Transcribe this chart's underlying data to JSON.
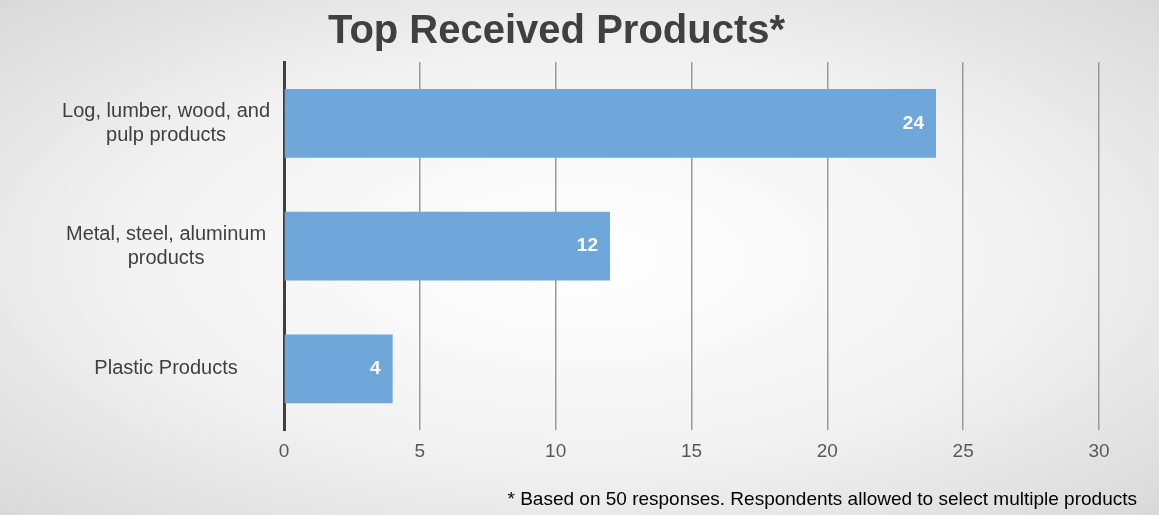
{
  "chart_data": {
    "type": "bar",
    "orientation": "horizontal",
    "title": "Top Received Products*",
    "categories": [
      "Log, lumber, wood, and pulp products",
      "Metal, steel, aluminum products",
      "Plastic Products"
    ],
    "values": [
      24,
      12,
      4
    ],
    "color": "#70a7da",
    "xlim": [
      0,
      30
    ],
    "xticks": [
      0,
      5,
      10,
      15,
      20,
      25,
      30
    ],
    "grid": "x",
    "data_labels": true,
    "annotations": [
      "* Based on 50 responses. Respondents allowed to select multiple products"
    ]
  }
}
